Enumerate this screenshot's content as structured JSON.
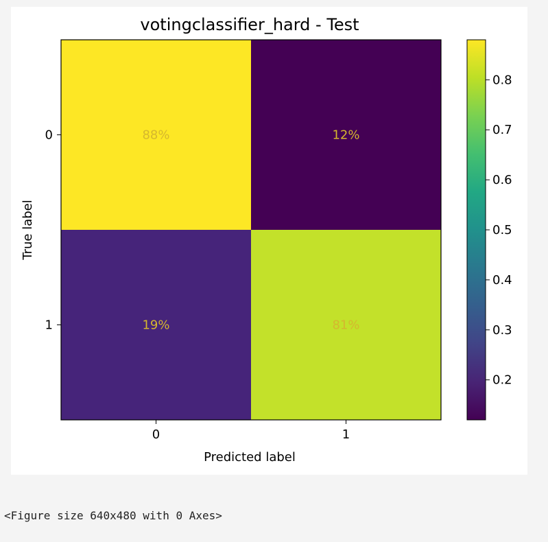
{
  "chart_data": {
    "type": "heatmap",
    "title": "votingclassifier_hard - Test",
    "xlabel": "Predicted label",
    "ylabel": "True label",
    "x_tick_labels": [
      "0",
      "1"
    ],
    "y_tick_labels": [
      "0",
      "1"
    ],
    "matrix": [
      [
        0.88,
        0.12
      ],
      [
        0.19,
        0.81
      ]
    ],
    "cell_labels": [
      [
        "88%",
        "12%"
      ],
      [
        "19%",
        "81%"
      ]
    ],
    "colormap": "viridis",
    "cell_colors": [
      [
        "#fde725",
        "#440154"
      ],
      [
        "#46247a",
        "#c3e12a"
      ]
    ],
    "cell_text_color": "#d5b72e",
    "colorbar": {
      "range": [
        0.12,
        0.88
      ],
      "ticks": [
        0.2,
        0.3,
        0.4,
        0.5,
        0.6,
        0.7,
        0.8
      ],
      "tick_labels": [
        "0.2",
        "0.3",
        "0.4",
        "0.5",
        "0.6",
        "0.7",
        "0.8"
      ]
    }
  },
  "output": {
    "figure_text": "<Figure size 640x480 with 0 Axes>"
  }
}
